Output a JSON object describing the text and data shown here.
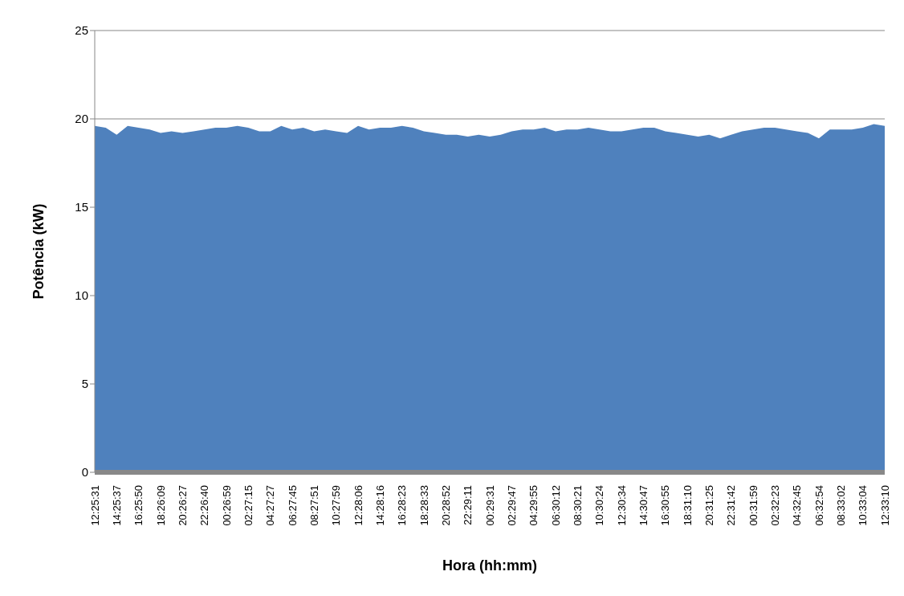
{
  "chart_data": {
    "type": "area",
    "xlabel": "Hora (hh:mm)",
    "ylabel": "Potência (kW)",
    "categories": [
      "12:25:31",
      null,
      "14:25:37",
      null,
      "16:25:50",
      null,
      "18:26:09",
      null,
      "20:26:27",
      null,
      "22:26:40",
      null,
      "00:26:59",
      null,
      "02:27:15",
      null,
      "04:27:27",
      null,
      "06:27:45",
      null,
      "08:27:51",
      null,
      "10:27:59",
      null,
      "12:28:06",
      null,
      "14:28:16",
      null,
      "16:28:23",
      null,
      "18:28:33",
      null,
      "20:28:52",
      null,
      "22:29:11",
      null,
      "00:29:31",
      null,
      "02:29:47",
      null,
      "04:29:55",
      null,
      "06:30:12",
      null,
      "08:30:21",
      null,
      "10:30:24",
      null,
      "12:30:34",
      null,
      "14:30:47",
      null,
      "16:30:55",
      null,
      "18:31:10",
      null,
      "20:31:25",
      null,
      "22:31:42",
      null,
      "00:31:59",
      null,
      "02:32:23",
      null,
      "04:32:45",
      null,
      "06:32:54",
      null,
      "08:33:02",
      null,
      "10:33:04",
      null,
      "12:33:10"
    ],
    "values": [
      19.6,
      19.5,
      19.1,
      19.6,
      19.5,
      19.4,
      19.2,
      19.3,
      19.2,
      19.3,
      19.4,
      19.5,
      19.5,
      19.6,
      19.5,
      19.3,
      19.3,
      19.6,
      19.4,
      19.5,
      19.3,
      19.4,
      19.3,
      19.2,
      19.6,
      19.4,
      19.5,
      19.5,
      19.6,
      19.5,
      19.3,
      19.2,
      19.1,
      19.1,
      19.0,
      19.1,
      19.0,
      19.1,
      19.3,
      19.4,
      19.4,
      19.5,
      19.3,
      19.4,
      19.4,
      19.5,
      19.4,
      19.3,
      19.3,
      19.4,
      19.5,
      19.5,
      19.3,
      19.2,
      19.1,
      19.0,
      19.1,
      18.9,
      19.1,
      19.3,
      19.4,
      19.5,
      19.5,
      19.4,
      19.3,
      19.2,
      18.9,
      19.4,
      19.4,
      19.4,
      19.5,
      19.7,
      19.6
    ],
    "color": "#4f81bd",
    "ylim": [
      0,
      25
    ],
    "yticks": [
      0,
      5,
      10,
      15,
      20,
      25
    ],
    "grid": "y"
  }
}
